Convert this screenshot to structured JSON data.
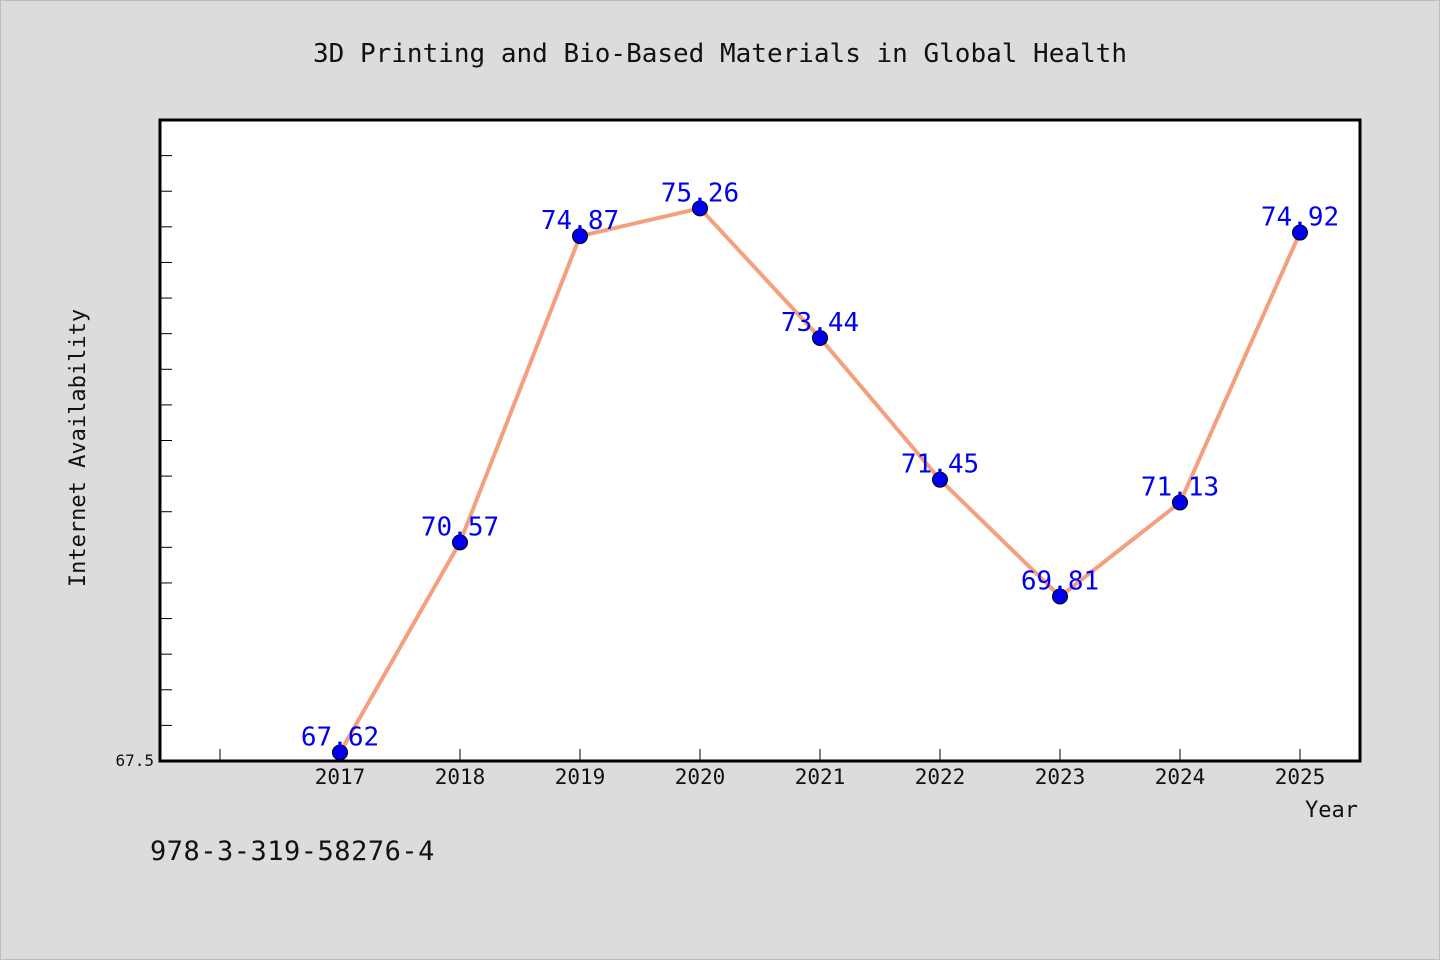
{
  "footer": {
    "identifier": "978-3-319-58276-4"
  },
  "chart_data": {
    "type": "line",
    "title": "3D Printing and Bio-Based Materials in Global Health",
    "xlabel": "Year",
    "ylabel": "Internet Availability",
    "categories": [
      "2017",
      "2018",
      "2019",
      "2020",
      "2021",
      "2022",
      "2023",
      "2024",
      "2025"
    ],
    "values": [
      67.62,
      70.57,
      74.87,
      75.26,
      73.44,
      71.45,
      69.81,
      71.13,
      74.92
    ],
    "data_labels": [
      "67.62",
      "70.57",
      "74.87",
      "75.26",
      "73.44",
      "71.45",
      "69.81",
      "71.13",
      "74.92"
    ],
    "ylim": [
      67.5,
      76.5
    ],
    "y_tick_labels": [
      "67.5"
    ],
    "grid": false,
    "legend": "none",
    "colors": {
      "line": "#f4a07e",
      "marker": "#0000ee",
      "data_label": "#0000ee",
      "plot_background": "#ffffff",
      "figure_background": "#dcdcdc"
    }
  }
}
